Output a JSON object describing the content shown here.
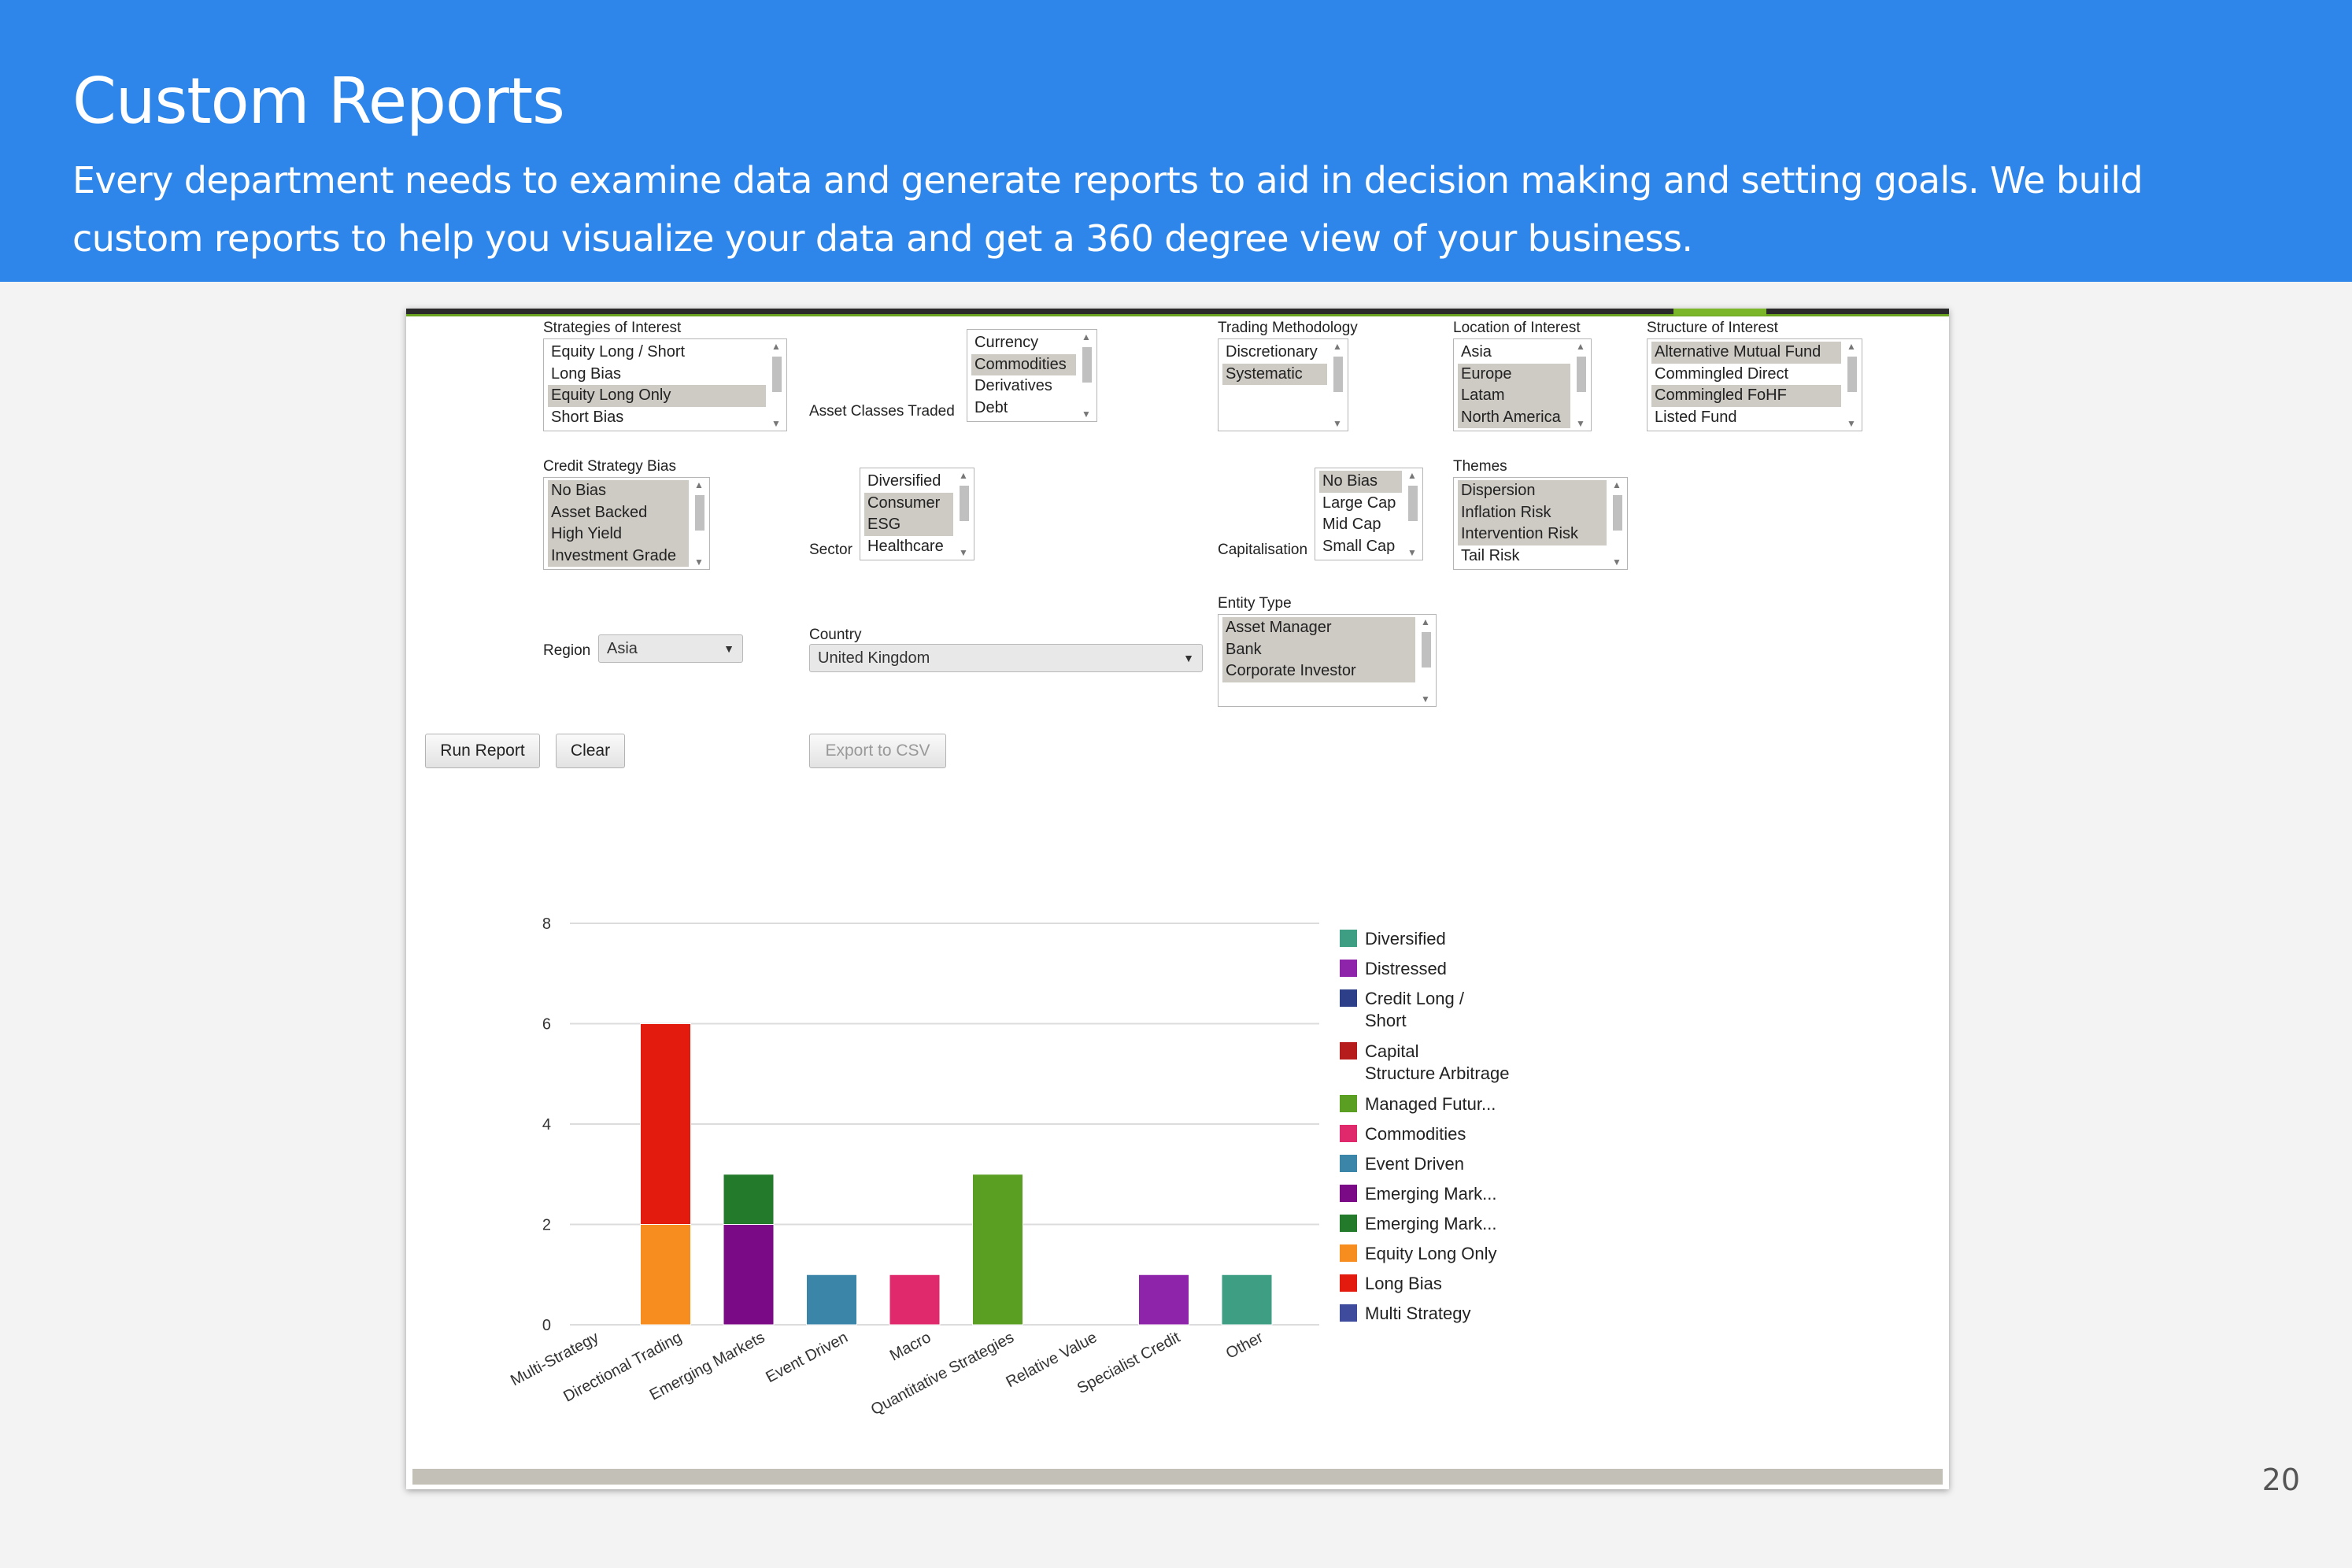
{
  "slide": {
    "title": "Custom Reports",
    "subtitle": "Every department needs to examine data and generate reports to aid in decision making and setting goals. We build custom reports to help you visualize your data and get a 360 degree view of your business.",
    "page_number": "20"
  },
  "form": {
    "strategies": {
      "label": "Strategies of Interest",
      "options": [
        {
          "text": "Equity Long / Short",
          "selected": false
        },
        {
          "text": "Long Bias",
          "selected": false
        },
        {
          "text": "Equity Long Only",
          "selected": true
        },
        {
          "text": "Short Bias",
          "selected": false
        }
      ]
    },
    "asset_classes": {
      "label": "Asset Classes Traded",
      "options": [
        {
          "text": "Currency",
          "selected": false
        },
        {
          "text": "Commodities",
          "selected": true
        },
        {
          "text": "Derivatives",
          "selected": false
        },
        {
          "text": "Debt",
          "selected": false
        }
      ]
    },
    "trading": {
      "label": "Trading Methodology",
      "options": [
        {
          "text": "Discretionary",
          "selected": false
        },
        {
          "text": "Systematic",
          "selected": true
        }
      ]
    },
    "location": {
      "label": "Location of Interest",
      "options": [
        {
          "text": "Asia",
          "selected": false
        },
        {
          "text": "Europe",
          "selected": true
        },
        {
          "text": "Latam",
          "selected": true
        },
        {
          "text": "North America",
          "selected": true
        }
      ]
    },
    "structure": {
      "label": "Structure of Interest",
      "options": [
        {
          "text": "Alternative Mutual Fund",
          "selected": true
        },
        {
          "text": "Commingled Direct",
          "selected": false
        },
        {
          "text": "Commingled FoHF",
          "selected": true
        },
        {
          "text": "Listed Fund",
          "selected": false
        }
      ]
    },
    "credit": {
      "label": "Credit Strategy Bias",
      "options": [
        {
          "text": "No Bias",
          "selected": true
        },
        {
          "text": "Asset Backed",
          "selected": true
        },
        {
          "text": "High Yield",
          "selected": true
        },
        {
          "text": "Investment Grade",
          "selected": true
        }
      ]
    },
    "sector": {
      "label": "Sector",
      "options": [
        {
          "text": "Diversified",
          "selected": false
        },
        {
          "text": "Consumer",
          "selected": true
        },
        {
          "text": "ESG",
          "selected": true
        },
        {
          "text": "Healthcare",
          "selected": false
        }
      ]
    },
    "capitalisation": {
      "label": "Capitalisation",
      "options": [
        {
          "text": "No Bias",
          "selected": true
        },
        {
          "text": "Large Cap",
          "selected": false
        },
        {
          "text": "Mid Cap",
          "selected": false
        },
        {
          "text": "Small Cap",
          "selected": false
        }
      ]
    },
    "themes": {
      "label": "Themes",
      "options": [
        {
          "text": "Dispersion",
          "selected": true
        },
        {
          "text": "Inflation Risk",
          "selected": true
        },
        {
          "text": "Intervention Risk",
          "selected": true
        },
        {
          "text": "Tail Risk",
          "selected": false
        }
      ]
    },
    "entity": {
      "label": "Entity Type",
      "options": [
        {
          "text": "Asset Manager",
          "selected": true
        },
        {
          "text": "Bank",
          "selected": true
        },
        {
          "text": "Corporate Investor",
          "selected": true
        }
      ]
    },
    "region": {
      "label": "Region",
      "value": "Asia"
    },
    "country": {
      "label": "Country",
      "value": "United Kingdom"
    },
    "buttons": {
      "run": "Run Report",
      "clear": "Clear",
      "export": "Export to CSV"
    }
  },
  "chart_data": {
    "type": "bar",
    "stacked": true,
    "categories": [
      "Multi-Strategy",
      "Directional Trading",
      "Emerging Markets",
      "Event Driven",
      "Macro",
      "Quantitative Strategies",
      "Relative Value",
      "Specialist Credit",
      "Other"
    ],
    "ylim": [
      0,
      8
    ],
    "yticks": [
      0,
      2,
      4,
      6,
      8
    ],
    "grid": true,
    "legend_position": "right",
    "series": [
      {
        "name": "Diversified",
        "color": "#3d9e84",
        "values": [
          0,
          0,
          0,
          0,
          0,
          0,
          0,
          0,
          1
        ]
      },
      {
        "name": "Distressed",
        "color": "#8e24aa",
        "values": [
          0,
          0,
          0,
          0,
          0,
          0,
          0,
          1,
          0
        ]
      },
      {
        "name": "Credit Long / Short",
        "color": "#2e3f8a",
        "values": [
          0,
          0,
          0,
          0,
          0,
          0,
          0,
          0,
          0
        ]
      },
      {
        "name": "Capital Structure Arbitrage",
        "color": "#b71c1c",
        "values": [
          0,
          0,
          0,
          0,
          0,
          0,
          0,
          0,
          0
        ]
      },
      {
        "name": "Managed Futur...",
        "color": "#5a9e22",
        "values": [
          0,
          0,
          0,
          0,
          0,
          3,
          0,
          0,
          0
        ]
      },
      {
        "name": "Commodities",
        "color": "#e0296c",
        "values": [
          0,
          0,
          0,
          0,
          1,
          0,
          0,
          0,
          0
        ]
      },
      {
        "name": "Event Driven",
        "color": "#3b86a8",
        "values": [
          0,
          0,
          0,
          1,
          0,
          0,
          0,
          0,
          0
        ]
      },
      {
        "name": "Emerging Mark...",
        "color": "#7b0a86",
        "values": [
          0,
          0,
          2,
          0,
          0,
          0,
          0,
          0,
          0
        ]
      },
      {
        "name": "Emerging Mark...",
        "color": "#237a2a",
        "values": [
          0,
          0,
          1,
          0,
          0,
          0,
          0,
          0,
          0
        ]
      },
      {
        "name": "Equity Long Only",
        "color": "#f78d1e",
        "values": [
          0,
          2,
          0,
          0,
          0,
          0,
          0,
          0,
          0
        ]
      },
      {
        "name": "Long Bias",
        "color": "#e31b0e",
        "values": [
          0,
          4,
          0,
          0,
          0,
          0,
          0,
          0,
          0
        ]
      },
      {
        "name": "Multi Strategy",
        "color": "#3f4b9c",
        "values": [
          0,
          0,
          0,
          0,
          0,
          0,
          0,
          0,
          0
        ]
      }
    ]
  }
}
